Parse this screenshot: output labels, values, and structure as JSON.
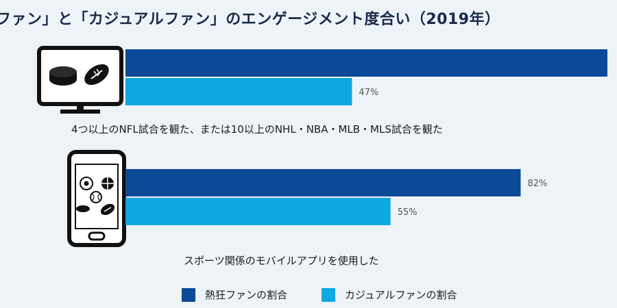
{
  "chart_data": {
    "type": "bar",
    "orientation": "horizontal",
    "title": "ファン」と「カジュアルファン」のエンゲージメント度合い（2019年）",
    "categories": [
      "4つ以上のNFL試合を観た、または10以上のNHL・NBA・MLB・MLS試合を観た",
      "スポーツ関係のモバイルアプリを使用した"
    ],
    "category_icons": [
      "tv-sports-icon",
      "smartphone-sports-icon"
    ],
    "series": [
      {
        "name": "熱狂ファンの割合",
        "values": [
          100,
          82
        ],
        "labels": [
          "",
          "82%"
        ],
        "color": "#0a4a96"
      },
      {
        "name": "カジュアルファンの割合",
        "values": [
          47,
          55
        ],
        "labels": [
          "47%",
          "55%"
        ],
        "color": "#10a8e0"
      }
    ],
    "xlim": [
      0,
      100
    ],
    "grid": false,
    "legend_position": "bottom"
  }
}
